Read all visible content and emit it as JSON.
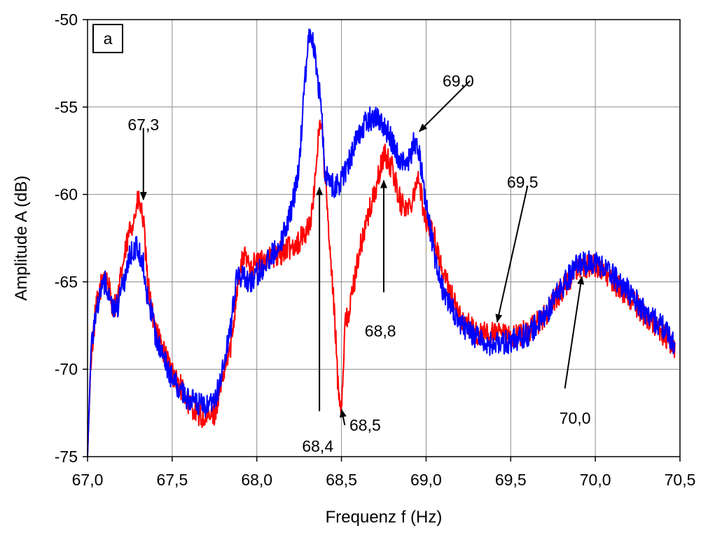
{
  "chart_data": {
    "type": "line",
    "panel_label": "a",
    "xlabel": "Frequenz f (Hz)",
    "ylabel": "Amplitude A (dB)",
    "xlim": [
      67.0,
      70.5
    ],
    "ylim": [
      -75,
      -50
    ],
    "xticks": [
      67.0,
      67.5,
      68.0,
      68.5,
      69.0,
      69.5,
      70.0,
      70.5
    ],
    "xtick_labels": [
      "67,0",
      "67,5",
      "68,0",
      "68,5",
      "69,0",
      "69,5",
      "70,0",
      "70,5"
    ],
    "yticks": [
      -75,
      -70,
      -65,
      -60,
      -55,
      -50
    ],
    "ytick_labels": [
      "-75",
      "-70",
      "-65",
      "-60",
      "-55",
      "-50"
    ],
    "grid": true,
    "series": [
      {
        "color": "#ff0000",
        "x": [
          67.0,
          67.02,
          67.05,
          67.08,
          67.1,
          67.13,
          67.15,
          67.18,
          67.2,
          67.23,
          67.25,
          67.28,
          67.3,
          67.33,
          67.35,
          67.38,
          67.4,
          67.45,
          67.5,
          67.55,
          67.6,
          67.65,
          67.7,
          67.75,
          67.8,
          67.85,
          67.88,
          67.92,
          67.95,
          68.0,
          68.05,
          68.1,
          68.15,
          68.2,
          68.25,
          68.3,
          68.33,
          68.36,
          68.38,
          68.4,
          68.43,
          68.46,
          68.48,
          68.5,
          68.52,
          68.55,
          68.6,
          68.65,
          68.7,
          68.75,
          68.8,
          68.85,
          68.9,
          68.95,
          69.0,
          69.05,
          69.1,
          69.2,
          69.3,
          69.4,
          69.5,
          69.6,
          69.7,
          69.8,
          69.9,
          70.0,
          70.1,
          70.2,
          70.3,
          70.4,
          70.47
        ],
        "y": [
          -75,
          -69.5,
          -66.5,
          -65.2,
          -64.3,
          -65.5,
          -66.5,
          -66.0,
          -64.5,
          -63.0,
          -62.0,
          -61.2,
          -60.3,
          -61.5,
          -64.5,
          -66.8,
          -67.5,
          -69.0,
          -70.2,
          -71.0,
          -72.0,
          -72.5,
          -73.0,
          -72.5,
          -70.5,
          -68.5,
          -65.5,
          -63.5,
          -63.9,
          -64.0,
          -63.7,
          -63.6,
          -63.3,
          -63.0,
          -62.7,
          -62.0,
          -61.0,
          -57.0,
          -55.5,
          -58.5,
          -63.0,
          -67.0,
          -71.0,
          -72.2,
          -67.5,
          -66.5,
          -63.5,
          -61.5,
          -59.8,
          -57.7,
          -58.5,
          -60.5,
          -60.8,
          -59.0,
          -61.5,
          -62.5,
          -64.5,
          -67.0,
          -68.0,
          -68.0,
          -68.2,
          -67.8,
          -67.0,
          -65.5,
          -64.2,
          -64.0,
          -65.0,
          -65.8,
          -67.0,
          -68.0,
          -68.8
        ]
      },
      {
        "color": "#0000ff",
        "x": [
          67.0,
          67.02,
          67.05,
          67.08,
          67.1,
          67.13,
          67.15,
          67.18,
          67.2,
          67.23,
          67.25,
          67.28,
          67.3,
          67.33,
          67.35,
          67.38,
          67.4,
          67.45,
          67.5,
          67.55,
          67.6,
          67.65,
          67.7,
          67.75,
          67.8,
          67.85,
          67.88,
          67.92,
          67.95,
          68.0,
          68.05,
          68.1,
          68.15,
          68.2,
          68.25,
          68.28,
          68.3,
          68.32,
          68.35,
          68.38,
          68.4,
          68.43,
          68.46,
          68.5,
          68.55,
          68.6,
          68.65,
          68.7,
          68.75,
          68.8,
          68.85,
          68.9,
          68.93,
          68.96,
          69.0,
          69.05,
          69.1,
          69.2,
          69.3,
          69.4,
          69.5,
          69.6,
          69.7,
          69.8,
          69.9,
          70.0,
          70.1,
          70.2,
          70.3,
          70.4,
          70.47
        ],
        "y": [
          -75,
          -69.0,
          -66.5,
          -65.5,
          -65.0,
          -65.5,
          -66.5,
          -66.3,
          -65.5,
          -64.5,
          -63.5,
          -63.0,
          -63.2,
          -64.0,
          -65.5,
          -67.0,
          -68.0,
          -69.5,
          -70.5,
          -71.3,
          -71.7,
          -72.0,
          -72.2,
          -72.0,
          -70.0,
          -67.5,
          -64.5,
          -64.8,
          -65.0,
          -64.6,
          -64.0,
          -63.3,
          -62.5,
          -61.0,
          -58.5,
          -54.0,
          -51.5,
          -50.5,
          -52.5,
          -55.0,
          -58.5,
          -59.3,
          -59.6,
          -59.2,
          -58.0,
          -56.5,
          -55.8,
          -55.5,
          -56.0,
          -57.0,
          -58.2,
          -58.0,
          -57.0,
          -57.8,
          -60.5,
          -63.5,
          -65.5,
          -67.5,
          -68.2,
          -68.6,
          -68.4,
          -68.0,
          -67.0,
          -65.3,
          -64.0,
          -63.8,
          -64.6,
          -65.6,
          -66.8,
          -67.6,
          -68.6
        ]
      }
    ],
    "annotations": [
      {
        "text": "67,3",
        "text_x": 67.33,
        "text_y": -56.0,
        "tail_x": 67.33,
        "tail_y": -56.2,
        "arrow_x": 67.33,
        "arrow_y": -60.3
      },
      {
        "text": "68,4",
        "text_x": 68.36,
        "text_y": -74.4,
        "tail_x": 68.37,
        "tail_y": -72.4,
        "arrow_x": 68.37,
        "arrow_y": -59.6
      },
      {
        "text": "68,5",
        "text_x": 68.64,
        "text_y": -73.2,
        "tail_x": 68.52,
        "tail_y": -73.2,
        "arrow_x": 68.5,
        "arrow_y": -72.3
      },
      {
        "text": "68,8",
        "text_x": 68.73,
        "text_y": -67.8,
        "tail_x": 68.75,
        "tail_y": -65.6,
        "arrow_x": 68.75,
        "arrow_y": -59.2
      },
      {
        "text": "69,0",
        "text_x": 69.19,
        "text_y": -53.5,
        "tail_x": 69.26,
        "tail_y": -53.5,
        "arrow_x": 68.96,
        "arrow_y": -56.4
      },
      {
        "text": "69,5",
        "text_x": 69.57,
        "text_y": -59.3,
        "tail_x": 69.6,
        "tail_y": -59.5,
        "arrow_x": 69.42,
        "arrow_y": -67.3
      },
      {
        "text": "70,0",
        "text_x": 69.88,
        "text_y": -72.8,
        "tail_x": 69.82,
        "tail_y": -71.1,
        "arrow_x": 69.92,
        "arrow_y": -64.7
      }
    ]
  }
}
